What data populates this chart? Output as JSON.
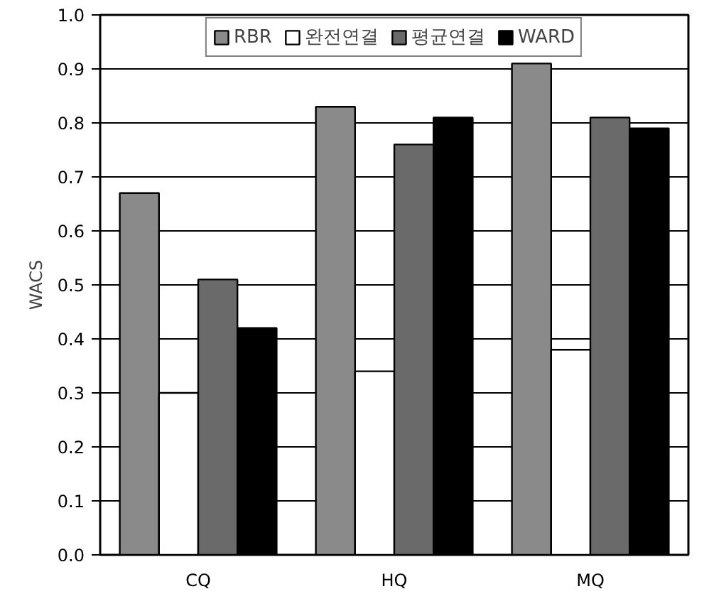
{
  "chart_data": {
    "type": "bar",
    "ylabel": "WACS",
    "categories": [
      "CQ",
      "HQ",
      "MQ"
    ],
    "series": [
      {
        "name": "RBR",
        "color": "#8a8a8a",
        "values": [
          0.67,
          0.83,
          0.91
        ]
      },
      {
        "name": "완전연결",
        "color": "#ffffff",
        "values": [
          0.3,
          0.34,
          0.38
        ]
      },
      {
        "name": "평균연결",
        "color": "#6a6a6a",
        "values": [
          0.51,
          0.76,
          0.81
        ]
      },
      {
        "name": "WARD",
        "color": "#000000",
        "values": [
          0.42,
          0.81,
          0.79
        ]
      }
    ],
    "ylim": [
      0,
      1.0
    ],
    "yticks": [
      {
        "value": 0,
        "label": "0.0"
      },
      0.1,
      0.2,
      0.3,
      0.4,
      0.5,
      0.6,
      0.7,
      0.8,
      0.9,
      {
        "value": 1,
        "label": "1.0"
      }
    ],
    "grid": "y",
    "legend": "top"
  }
}
